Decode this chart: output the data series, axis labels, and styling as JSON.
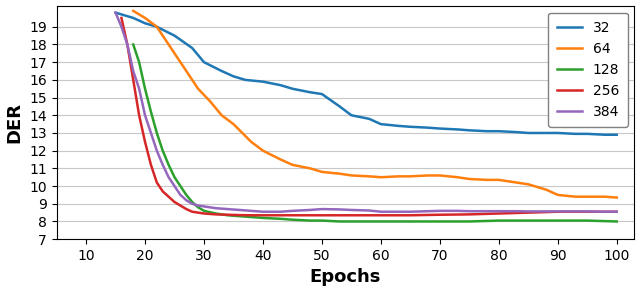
{
  "title": "",
  "xlabel": "Epochs",
  "ylabel": "DER",
  "xlim": [
    5,
    103
  ],
  "ylim": [
    7,
    20.2
  ],
  "yticks": [
    7,
    8,
    9,
    10,
    11,
    12,
    13,
    14,
    15,
    16,
    17,
    18,
    19
  ],
  "xticks": [
    10,
    20,
    30,
    40,
    50,
    60,
    70,
    80,
    90,
    100
  ],
  "series": [
    {
      "label": "32",
      "color": "#1f77b4",
      "x": [
        15,
        18,
        20,
        22,
        25,
        28,
        30,
        33,
        35,
        37,
        40,
        43,
        45,
        48,
        50,
        53,
        55,
        58,
        60,
        63,
        65,
        68,
        70,
        73,
        75,
        78,
        80,
        83,
        85,
        88,
        90,
        93,
        95,
        98,
        100
      ],
      "y": [
        19.8,
        19.5,
        19.2,
        19.0,
        18.5,
        17.8,
        17.0,
        16.5,
        16.2,
        16.0,
        15.9,
        15.7,
        15.5,
        15.3,
        15.2,
        14.5,
        14.0,
        13.8,
        13.5,
        13.4,
        13.35,
        13.3,
        13.25,
        13.2,
        13.15,
        13.1,
        13.1,
        13.05,
        13.0,
        13.0,
        13.0,
        12.95,
        12.95,
        12.9,
        12.9
      ]
    },
    {
      "label": "64",
      "color": "#ff7f0e",
      "x": [
        18,
        20,
        22,
        25,
        27,
        29,
        31,
        33,
        35,
        38,
        40,
        43,
        45,
        48,
        50,
        53,
        55,
        58,
        60,
        63,
        65,
        68,
        70,
        73,
        75,
        78,
        80,
        83,
        85,
        88,
        90,
        93,
        95,
        98,
        100
      ],
      "y": [
        19.9,
        19.5,
        19.0,
        17.5,
        16.5,
        15.5,
        14.8,
        14.0,
        13.5,
        12.5,
        12.0,
        11.5,
        11.2,
        11.0,
        10.8,
        10.7,
        10.6,
        10.55,
        10.5,
        10.55,
        10.55,
        10.6,
        10.6,
        10.5,
        10.4,
        10.35,
        10.35,
        10.2,
        10.1,
        9.8,
        9.5,
        9.4,
        9.4,
        9.4,
        9.35
      ]
    },
    {
      "label": "128",
      "color": "#2ca02c",
      "x": [
        18,
        19,
        20,
        21,
        22,
        23,
        24,
        25,
        26,
        27,
        28,
        29,
        30,
        32,
        34,
        36,
        38,
        40,
        43,
        45,
        48,
        50,
        53,
        55,
        58,
        60,
        63,
        65,
        68,
        70,
        75,
        80,
        85,
        90,
        95,
        100
      ],
      "y": [
        18.0,
        17.0,
        15.5,
        14.2,
        13.0,
        12.0,
        11.2,
        10.5,
        10.0,
        9.5,
        9.1,
        8.8,
        8.6,
        8.45,
        8.35,
        8.3,
        8.25,
        8.2,
        8.15,
        8.1,
        8.05,
        8.05,
        8.0,
        8.0,
        8.0,
        8.0,
        8.0,
        8.0,
        8.0,
        8.0,
        8.0,
        8.05,
        8.05,
        8.05,
        8.05,
        8.0
      ]
    },
    {
      "label": "256",
      "color": "#d62728",
      "x": [
        16,
        17,
        18,
        19,
        20,
        21,
        22,
        23,
        24,
        25,
        26,
        27,
        28,
        29,
        30,
        32,
        34,
        36,
        38,
        40,
        43,
        45,
        50,
        55,
        60,
        65,
        70,
        75,
        80,
        85,
        90,
        95,
        100
      ],
      "y": [
        19.5,
        18.0,
        16.0,
        14.0,
        12.5,
        11.2,
        10.2,
        9.7,
        9.4,
        9.1,
        8.9,
        8.7,
        8.55,
        8.5,
        8.45,
        8.4,
        8.38,
        8.36,
        8.35,
        8.35,
        8.35,
        8.35,
        8.35,
        8.35,
        8.35,
        8.35,
        8.38,
        8.4,
        8.45,
        8.5,
        8.55,
        8.55,
        8.55
      ]
    },
    {
      "label": "384",
      "color": "#9467bd",
      "x": [
        15,
        16,
        17,
        18,
        19,
        20,
        21,
        22,
        23,
        24,
        25,
        26,
        27,
        28,
        29,
        30,
        32,
        34,
        36,
        38,
        40,
        43,
        45,
        48,
        50,
        53,
        55,
        58,
        60,
        63,
        65,
        68,
        70,
        73,
        75,
        78,
        80,
        83,
        85,
        88,
        90,
        93,
        95,
        98,
        100
      ],
      "y": [
        19.8,
        19.0,
        18.0,
        16.5,
        15.5,
        14.0,
        13.0,
        12.0,
        11.2,
        10.5,
        10.0,
        9.5,
        9.2,
        9.0,
        8.9,
        8.85,
        8.75,
        8.7,
        8.65,
        8.6,
        8.55,
        8.55,
        8.6,
        8.65,
        8.7,
        8.68,
        8.65,
        8.62,
        8.55,
        8.55,
        8.55,
        8.58,
        8.6,
        8.6,
        8.58,
        8.58,
        8.58,
        8.58,
        8.57,
        8.57,
        8.57,
        8.57,
        8.57,
        8.55,
        8.55
      ]
    }
  ],
  "legend_loc": "upper right",
  "linewidth": 1.8,
  "figsize": [
    6.4,
    2.92
  ],
  "dpi": 100
}
